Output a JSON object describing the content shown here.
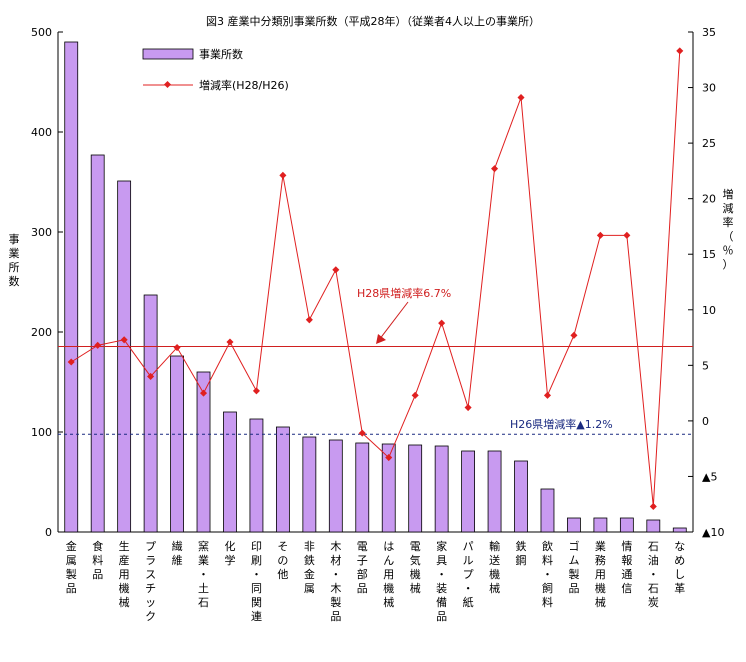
{
  "chart_data": {
    "type": "bar+line",
    "title": "図3 産業中分類別事業所数（平成28年）（従業者4人以上の事業所）",
    "categories": [
      "金属製品",
      "食料品",
      "生産用機械",
      "プラスチック",
      "繊維",
      "窯業・土石",
      "化学",
      "印刷・同関連",
      "その他",
      "非鉄金属",
      "木材・木製品",
      "電子部品",
      "はん用機械",
      "電気機械",
      "家具・装備品",
      "パルプ・紙",
      "輸送機械",
      "鉄鋼",
      "飲料・飼料",
      "ゴム製品",
      "業務用機械",
      "情報通信",
      "石油・石炭",
      "なめし革"
    ],
    "series": [
      {
        "name": "事業所数",
        "type": "bar",
        "axis": "left",
        "color": "#c89af0",
        "values": [
          490,
          377,
          351,
          237,
          176,
          160,
          120,
          113,
          105,
          95,
          92,
          89,
          88,
          87,
          86,
          81,
          81,
          71,
          43,
          14,
          14,
          14,
          12,
          4
        ]
      },
      {
        "name": "増減率(H28/H26)",
        "type": "line",
        "axis": "right",
        "color": "#e02020",
        "values": [
          5.3,
          6.8,
          7.3,
          4.0,
          6.6,
          2.5,
          7.1,
          2.7,
          22.1,
          9.1,
          13.6,
          -1.1,
          -3.3,
          2.3,
          8.8,
          1.2,
          22.7,
          29.1,
          2.3,
          7.7,
          16.7,
          16.7,
          -7.7,
          33.3
        ]
      }
    ],
    "y_left": {
      "label": "事業所数",
      "min": 0,
      "max": 500,
      "ticks": [
        "0",
        "100",
        "200",
        "300",
        "400",
        "500"
      ]
    },
    "y_right": {
      "label": "増減率（％）",
      "min": -10,
      "max": 35,
      "ticks": [
        {
          "v": -10,
          "t": "▲10"
        },
        {
          "v": -5,
          "t": "▲5"
        },
        {
          "v": 0,
          "t": "0"
        },
        {
          "v": 5,
          "t": "5"
        },
        {
          "v": 10,
          "t": "10"
        },
        {
          "v": 15,
          "t": "15"
        },
        {
          "v": 20,
          "t": "20"
        },
        {
          "v": 25,
          "t": "25"
        },
        {
          "v": 30,
          "t": "30"
        },
        {
          "v": 35,
          "t": "35"
        }
      ]
    },
    "reference_lines": [
      {
        "label": "H28県増減率6.7%",
        "value": 6.7,
        "style": "solid",
        "color": "#d02020"
      },
      {
        "label": "H26県増減率▲1.2%",
        "value": -1.2,
        "style": "dashed",
        "color": "#1a2a80"
      }
    ],
    "legend": {
      "position": "top-left"
    },
    "grid": false
  }
}
